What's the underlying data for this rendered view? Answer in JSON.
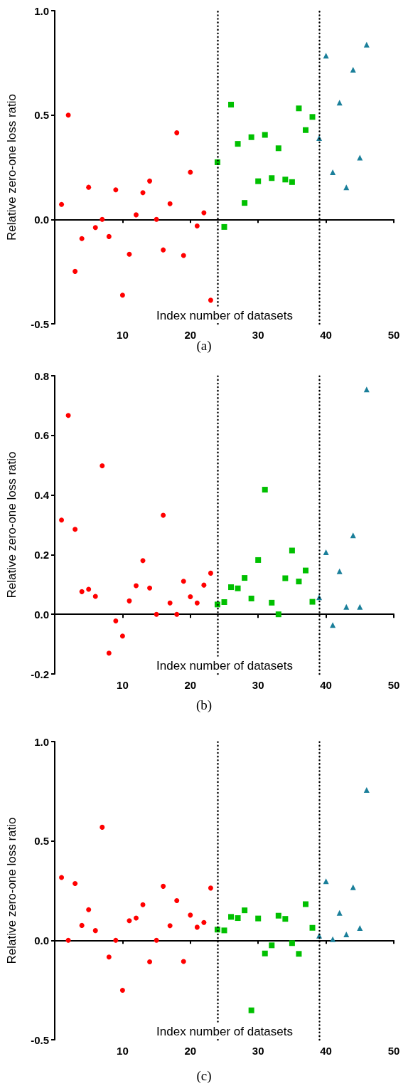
{
  "chart_data": [
    {
      "type": "scatter",
      "title": "(a)",
      "xlabel": "Index number of datasets",
      "ylabel": "Relative zero-one loss ratio",
      "xlim": [
        0,
        50
      ],
      "xticks": [
        10,
        20,
        30,
        40,
        50
      ],
      "ylim": [
        -0.5,
        1.0
      ],
      "yticks": [
        {
          "value": -0.5,
          "label": "-0.5"
        },
        {
          "value": 0,
          "label": "0.0"
        },
        {
          "value": 0.5,
          "label": "0.5"
        },
        {
          "value": 1,
          "label": "1.0"
        }
      ],
      "ref_lines": [
        {
          "axis": "x",
          "value": 24,
          "color": "#000000",
          "line_style": "dotted"
        },
        {
          "axis": "x",
          "value": 39,
          "color": "#000000",
          "line_style": "dotted"
        }
      ],
      "series": [
        {
          "color": "#ff0000",
          "marker": "circle",
          "x": [
            1,
            2,
            3,
            4,
            5,
            6,
            7,
            8,
            9,
            10,
            11,
            12,
            13,
            14,
            15,
            16,
            17,
            18,
            19,
            20,
            21,
            22,
            23
          ],
          "values": [
            0.072,
            0.5,
            -0.249,
            -0.092,
            0.154,
            -0.039,
            0,
            -0.082,
            0.142,
            -0.363,
            -0.167,
            0.022,
            0.128,
            0.184,
            0,
            -0.146,
            0.075,
            0.415,
            -0.173,
            0.226,
            -0.031,
            0.032,
            -0.387
          ]
        },
        {
          "color": "#00c000",
          "marker": "square",
          "x": [
            24,
            25,
            26,
            27,
            28,
            29,
            30,
            31,
            32,
            33,
            34,
            35,
            36,
            37,
            38
          ],
          "values": [
            0.274,
            -0.036,
            0.55,
            0.362,
            0.079,
            0.394,
            0.183,
            0.405,
            0.198,
            0.341,
            0.191,
            0.179,
            0.532,
            0.428,
            0.491
          ]
        },
        {
          "color": "#1a7f9a",
          "marker": "triangle",
          "x": [
            39,
            40,
            41,
            42,
            43,
            44,
            45,
            46
          ],
          "values": [
            0.39,
            0.784,
            0.226,
            0.559,
            0.154,
            0.717,
            0.296,
            0.837
          ]
        }
      ]
    },
    {
      "type": "scatter",
      "title": "(b)",
      "xlabel": "Index number of datasets",
      "ylabel": "Relative zero-one loss ratio",
      "xlim": [
        0,
        50
      ],
      "xticks": [
        10,
        20,
        30,
        40,
        50
      ],
      "ylim": [
        -0.2,
        0.8
      ],
      "yticks": [
        {
          "value": -0.2,
          "label": "-0.2"
        },
        {
          "value": 0,
          "label": "0.0"
        },
        {
          "value": 0.2,
          "label": "0.2"
        },
        {
          "value": 0.4,
          "label": "0.4"
        },
        {
          "value": 0.6,
          "label": "0.6"
        },
        {
          "value": 0.8,
          "label": "0.8"
        }
      ],
      "ref_lines": [
        {
          "axis": "x",
          "value": 24,
          "color": "#000000",
          "line_style": "dotted"
        },
        {
          "axis": "x",
          "value": 39,
          "color": "#000000",
          "line_style": "dotted"
        }
      ],
      "series": [
        {
          "color": "#ff0000",
          "marker": "circle",
          "x": [
            1,
            2,
            3,
            4,
            5,
            6,
            7,
            8,
            9,
            10,
            11,
            12,
            13,
            14,
            15,
            16,
            17,
            18,
            19,
            20,
            21,
            22,
            23
          ],
          "values": [
            0.316,
            0.667,
            0.285,
            0.076,
            0.084,
            0.06,
            0.498,
            -0.13,
            -0.022,
            -0.073,
            0.045,
            0.096,
            0.18,
            0.088,
            0,
            0.332,
            0.038,
            0,
            0.111,
            0.059,
            0.038,
            0.098,
            0.138
          ]
        },
        {
          "color": "#00c000",
          "marker": "square",
          "x": [
            24,
            25,
            26,
            27,
            28,
            29,
            30,
            31,
            32,
            33,
            34,
            35,
            36,
            37,
            38
          ],
          "values": [
            0.033,
            0.041,
            0.091,
            0.087,
            0.122,
            0.053,
            0.182,
            0.418,
            0.039,
            0,
            0.121,
            0.214,
            0.11,
            0.147,
            0.042
          ]
        },
        {
          "color": "#1a7f9a",
          "marker": "triangle",
          "x": [
            39,
            40,
            41,
            42,
            43,
            44,
            45,
            46
          ],
          "values": [
            0.057,
            0.208,
            -0.036,
            0.144,
            0.025,
            0.265,
            0.025,
            0.754
          ]
        }
      ]
    },
    {
      "type": "scatter",
      "title": "(c)",
      "xlabel": "Index number of datasets",
      "ylabel": "Relative zero-one loss ratio",
      "xlim": [
        0,
        50
      ],
      "xticks": [
        10,
        20,
        30,
        40,
        50
      ],
      "ylim": [
        -0.5,
        1.0
      ],
      "yticks": [
        {
          "value": -0.5,
          "label": "-0.5"
        },
        {
          "value": 0,
          "label": "0.0"
        },
        {
          "value": 0.5,
          "label": "0.5"
        },
        {
          "value": 1,
          "label": "1.0"
        }
      ],
      "ref_lines": [
        {
          "axis": "x",
          "value": 24,
          "color": "#000000",
          "line_style": "dotted"
        },
        {
          "axis": "x",
          "value": 39,
          "color": "#000000",
          "line_style": "dotted"
        }
      ],
      "series": [
        {
          "color": "#ff0000",
          "marker": "circle",
          "x": [
            1,
            2,
            3,
            4,
            5,
            6,
            7,
            8,
            9,
            10,
            11,
            12,
            13,
            14,
            15,
            16,
            17,
            18,
            19,
            20,
            21,
            22,
            23
          ],
          "values": [
            0.316,
            0,
            0.286,
            0.075,
            0.154,
            0.049,
            0.569,
            -0.084,
            0,
            -0.251,
            0.099,
            0.112,
            0.179,
            -0.108,
            0,
            0.272,
            0.074,
            0.2,
            -0.106,
            0.127,
            0.066,
            0.09,
            0.263
          ]
        },
        {
          "color": "#00c000",
          "marker": "square",
          "x": [
            24,
            25,
            26,
            27,
            28,
            29,
            30,
            31,
            32,
            33,
            34,
            35,
            36,
            37,
            38
          ],
          "values": [
            0.054,
            0.05,
            0.118,
            0.112,
            0.151,
            -0.352,
            0.11,
            -0.066,
            -0.025,
            0.124,
            0.108,
            -0.014,
            -0.068,
            0.182,
            0.063
          ]
        },
        {
          "color": "#1a7f9a",
          "marker": "triangle",
          "x": [
            39,
            40,
            41,
            42,
            43,
            44,
            45,
            46
          ],
          "values": [
            0.024,
            0.297,
            0.006,
            0.138,
            0.03,
            0.267,
            0.062,
            0.757
          ]
        }
      ]
    }
  ]
}
